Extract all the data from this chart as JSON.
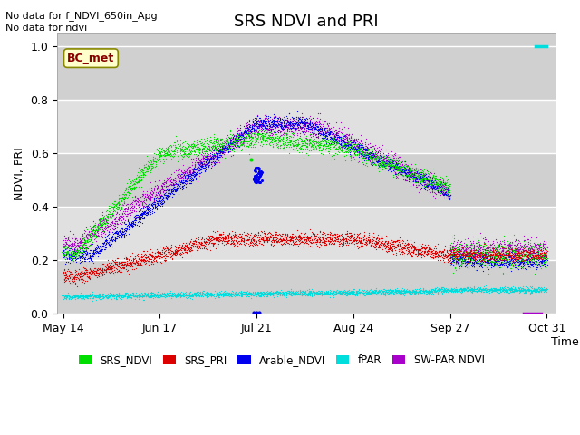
{
  "title": "SRS NDVI and PRI",
  "ylabel": "NDVI, PRI",
  "xlabel": "Time",
  "subtitle_lines": [
    "No data for f_NDVI_650in_Apg",
    "No data for ndvi"
  ],
  "bc_met_label": "BC_met",
  "ylim": [
    0.0,
    1.05
  ],
  "yticks": [
    0.0,
    0.2,
    0.4,
    0.6,
    0.8,
    1.0
  ],
  "xtick_labels": [
    "May 14",
    "Jun 17",
    "Jul 21",
    "Aug 24",
    "Sep 27",
    "Oct 31"
  ],
  "xtick_positions": [
    0,
    34,
    68,
    102,
    136,
    170
  ],
  "legend": [
    {
      "label": "SRS_NDVI",
      "color": "#00dd00"
    },
    {
      "label": "SRS_PRI",
      "color": "#dd0000"
    },
    {
      "label": "Arable_NDVI",
      "color": "#0000ee"
    },
    {
      "label": "fPAR",
      "color": "#00dddd"
    },
    {
      "label": "SW-PAR NDVI",
      "color": "#aa00cc"
    }
  ],
  "bg_bands": [
    {
      "ymin": 0.6,
      "ymax": 0.8,
      "color": "#e8e8e8"
    },
    {
      "ymin": 0.2,
      "ymax": 0.4,
      "color": "#e8e8e8"
    },
    {
      "ymin": 0.0,
      "ymax": 0.0,
      "color": "#e8e8e8"
    }
  ],
  "plot_bg_color": "#d0d0d0",
  "fig_bg_color": "#ffffff",
  "grid_color": "#ffffff",
  "title_fontsize": 13,
  "axis_fontsize": 9
}
